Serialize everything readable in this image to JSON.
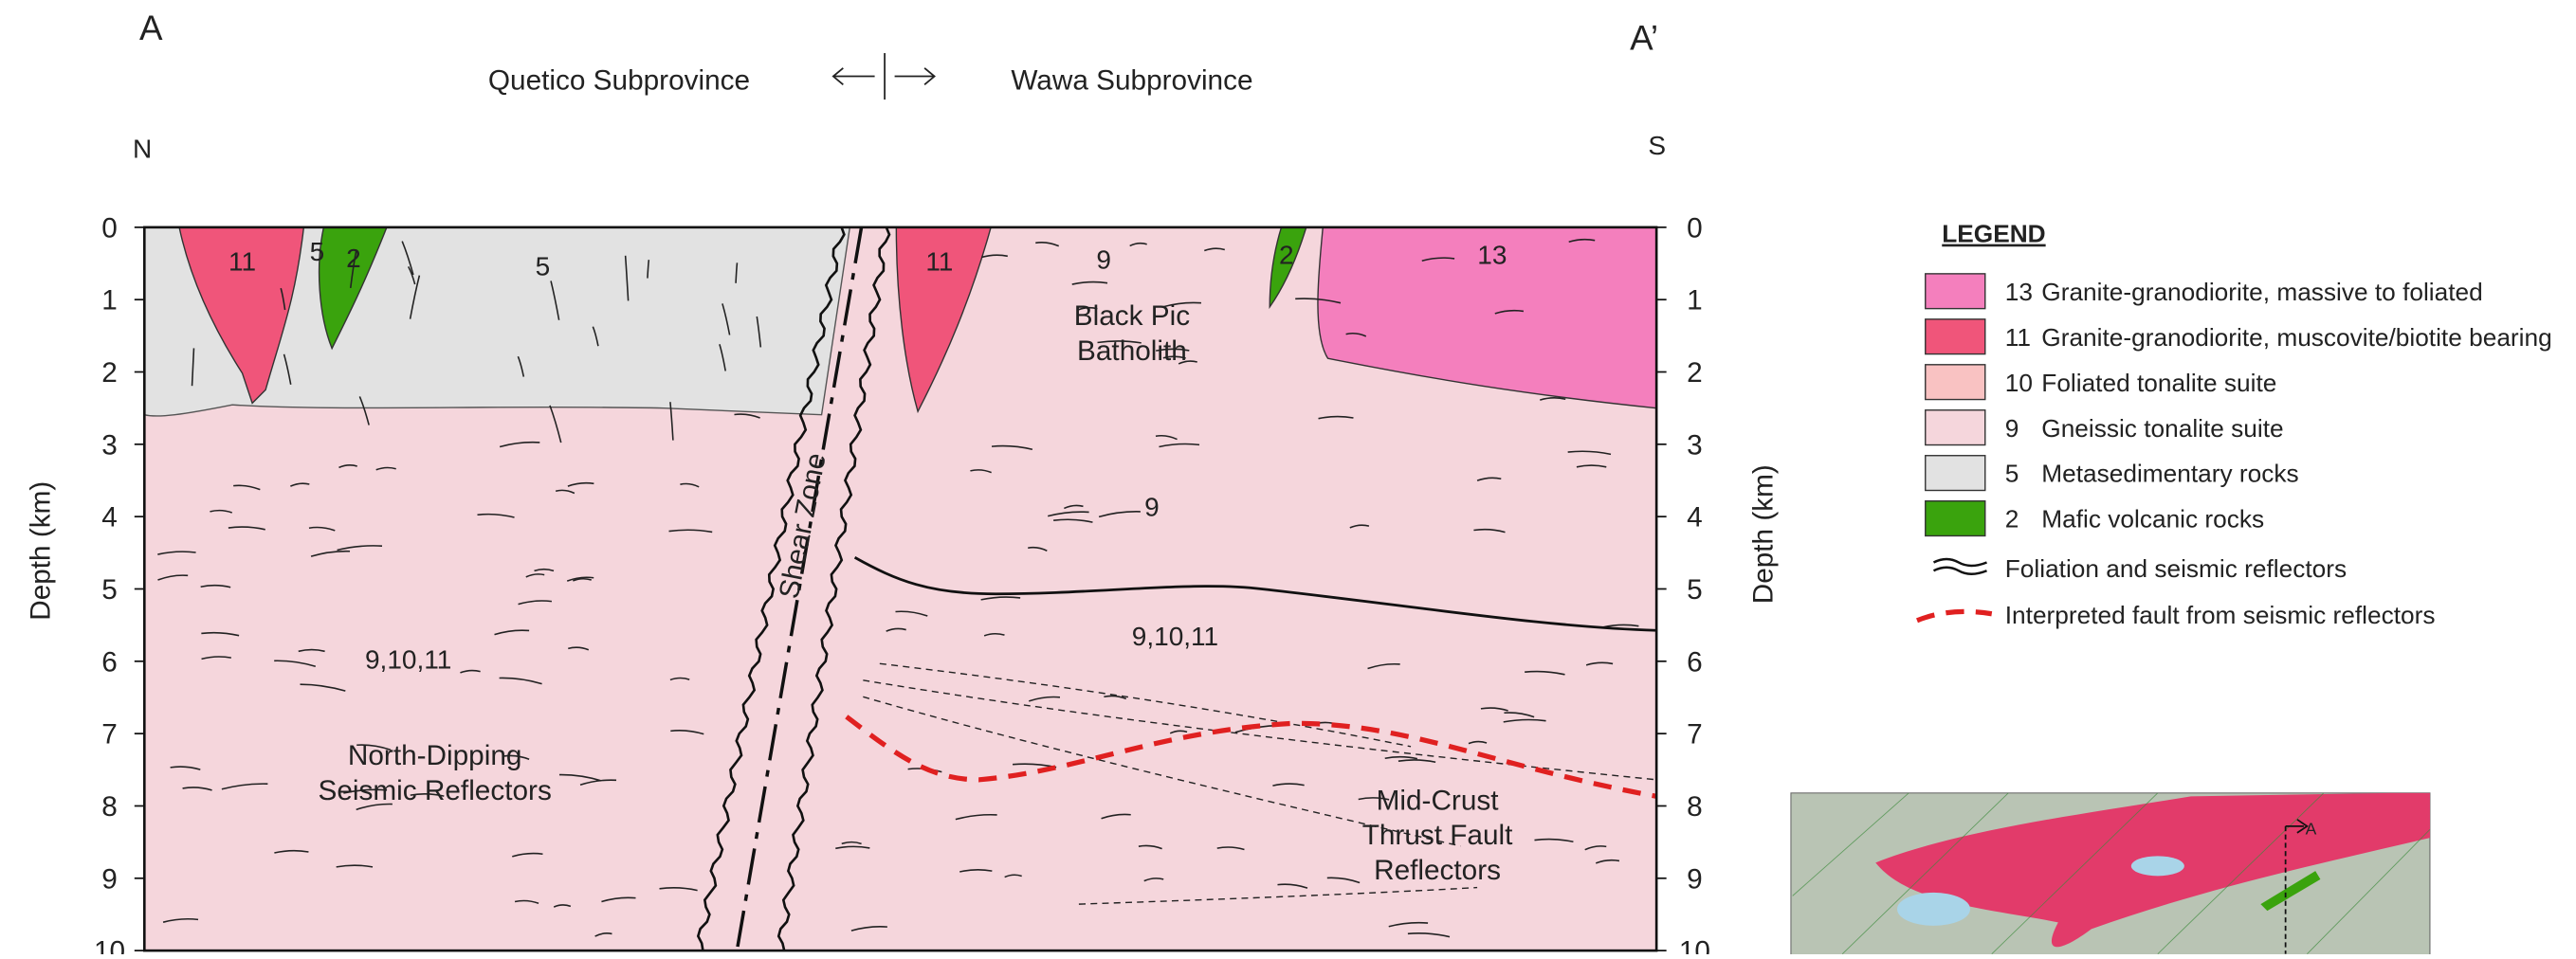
{
  "header": {
    "left_marker": "A",
    "right_marker": "A’",
    "left_province": "Quetico Subprovince",
    "right_province": "Wawa Subprovince",
    "left_direction": "N",
    "right_direction": "S"
  },
  "section": {
    "axis_label": "Depth (km)",
    "depth_ticks": [
      0,
      1,
      2,
      3,
      4,
      5,
      6,
      7,
      8,
      9,
      10
    ],
    "labels": {
      "unit_11_left": "11",
      "unit_5_small": "5",
      "unit_2_left": "2",
      "unit_5_right": "5",
      "unit_11_right": "11",
      "unit_9_top": "9",
      "unit_2_right": "2",
      "unit_13": "13",
      "batholith": [
        "Black Pic",
        "Batholith"
      ],
      "unit_9_mid": "9",
      "unit_mix_left": "9,10,11",
      "unit_mix_right": "9,10,11",
      "north_dipping": [
        "North-Dipping",
        "Seismic Reflectors"
      ],
      "shear_zone": "Shear Zone",
      "mid_crust": [
        "Mid-Crust",
        "Thrust Fault",
        "Reflectors"
      ]
    }
  },
  "legend": {
    "title": "LEGEND",
    "units": [
      {
        "code": "13",
        "name": "Granite-granodiorite, massive to foliated",
        "color": "#f47fbd"
      },
      {
        "code": "11",
        "name": "Granite-granodiorite, muscovite/biotite bearing",
        "color": "#f0557a"
      },
      {
        "code": "10",
        "name": "Foliated tonalite suite",
        "color": "#f9c2c2"
      },
      {
        "code": "9",
        "name": "Gneissic tonalite suite",
        "color": "#f5d6dc"
      },
      {
        "code": "5",
        "name": "Metasedimentary rocks",
        "color": "#e2e2e2"
      },
      {
        "code": "2",
        "name": "Mafic volcanic rocks",
        "color": "#3aa30d"
      }
    ],
    "lines": [
      {
        "name": "Foliation and seismic reflectors",
        "color": "#111111"
      },
      {
        "name": "Interpreted fault from seismic reflectors",
        "color": "#e02020"
      }
    ]
  }
}
